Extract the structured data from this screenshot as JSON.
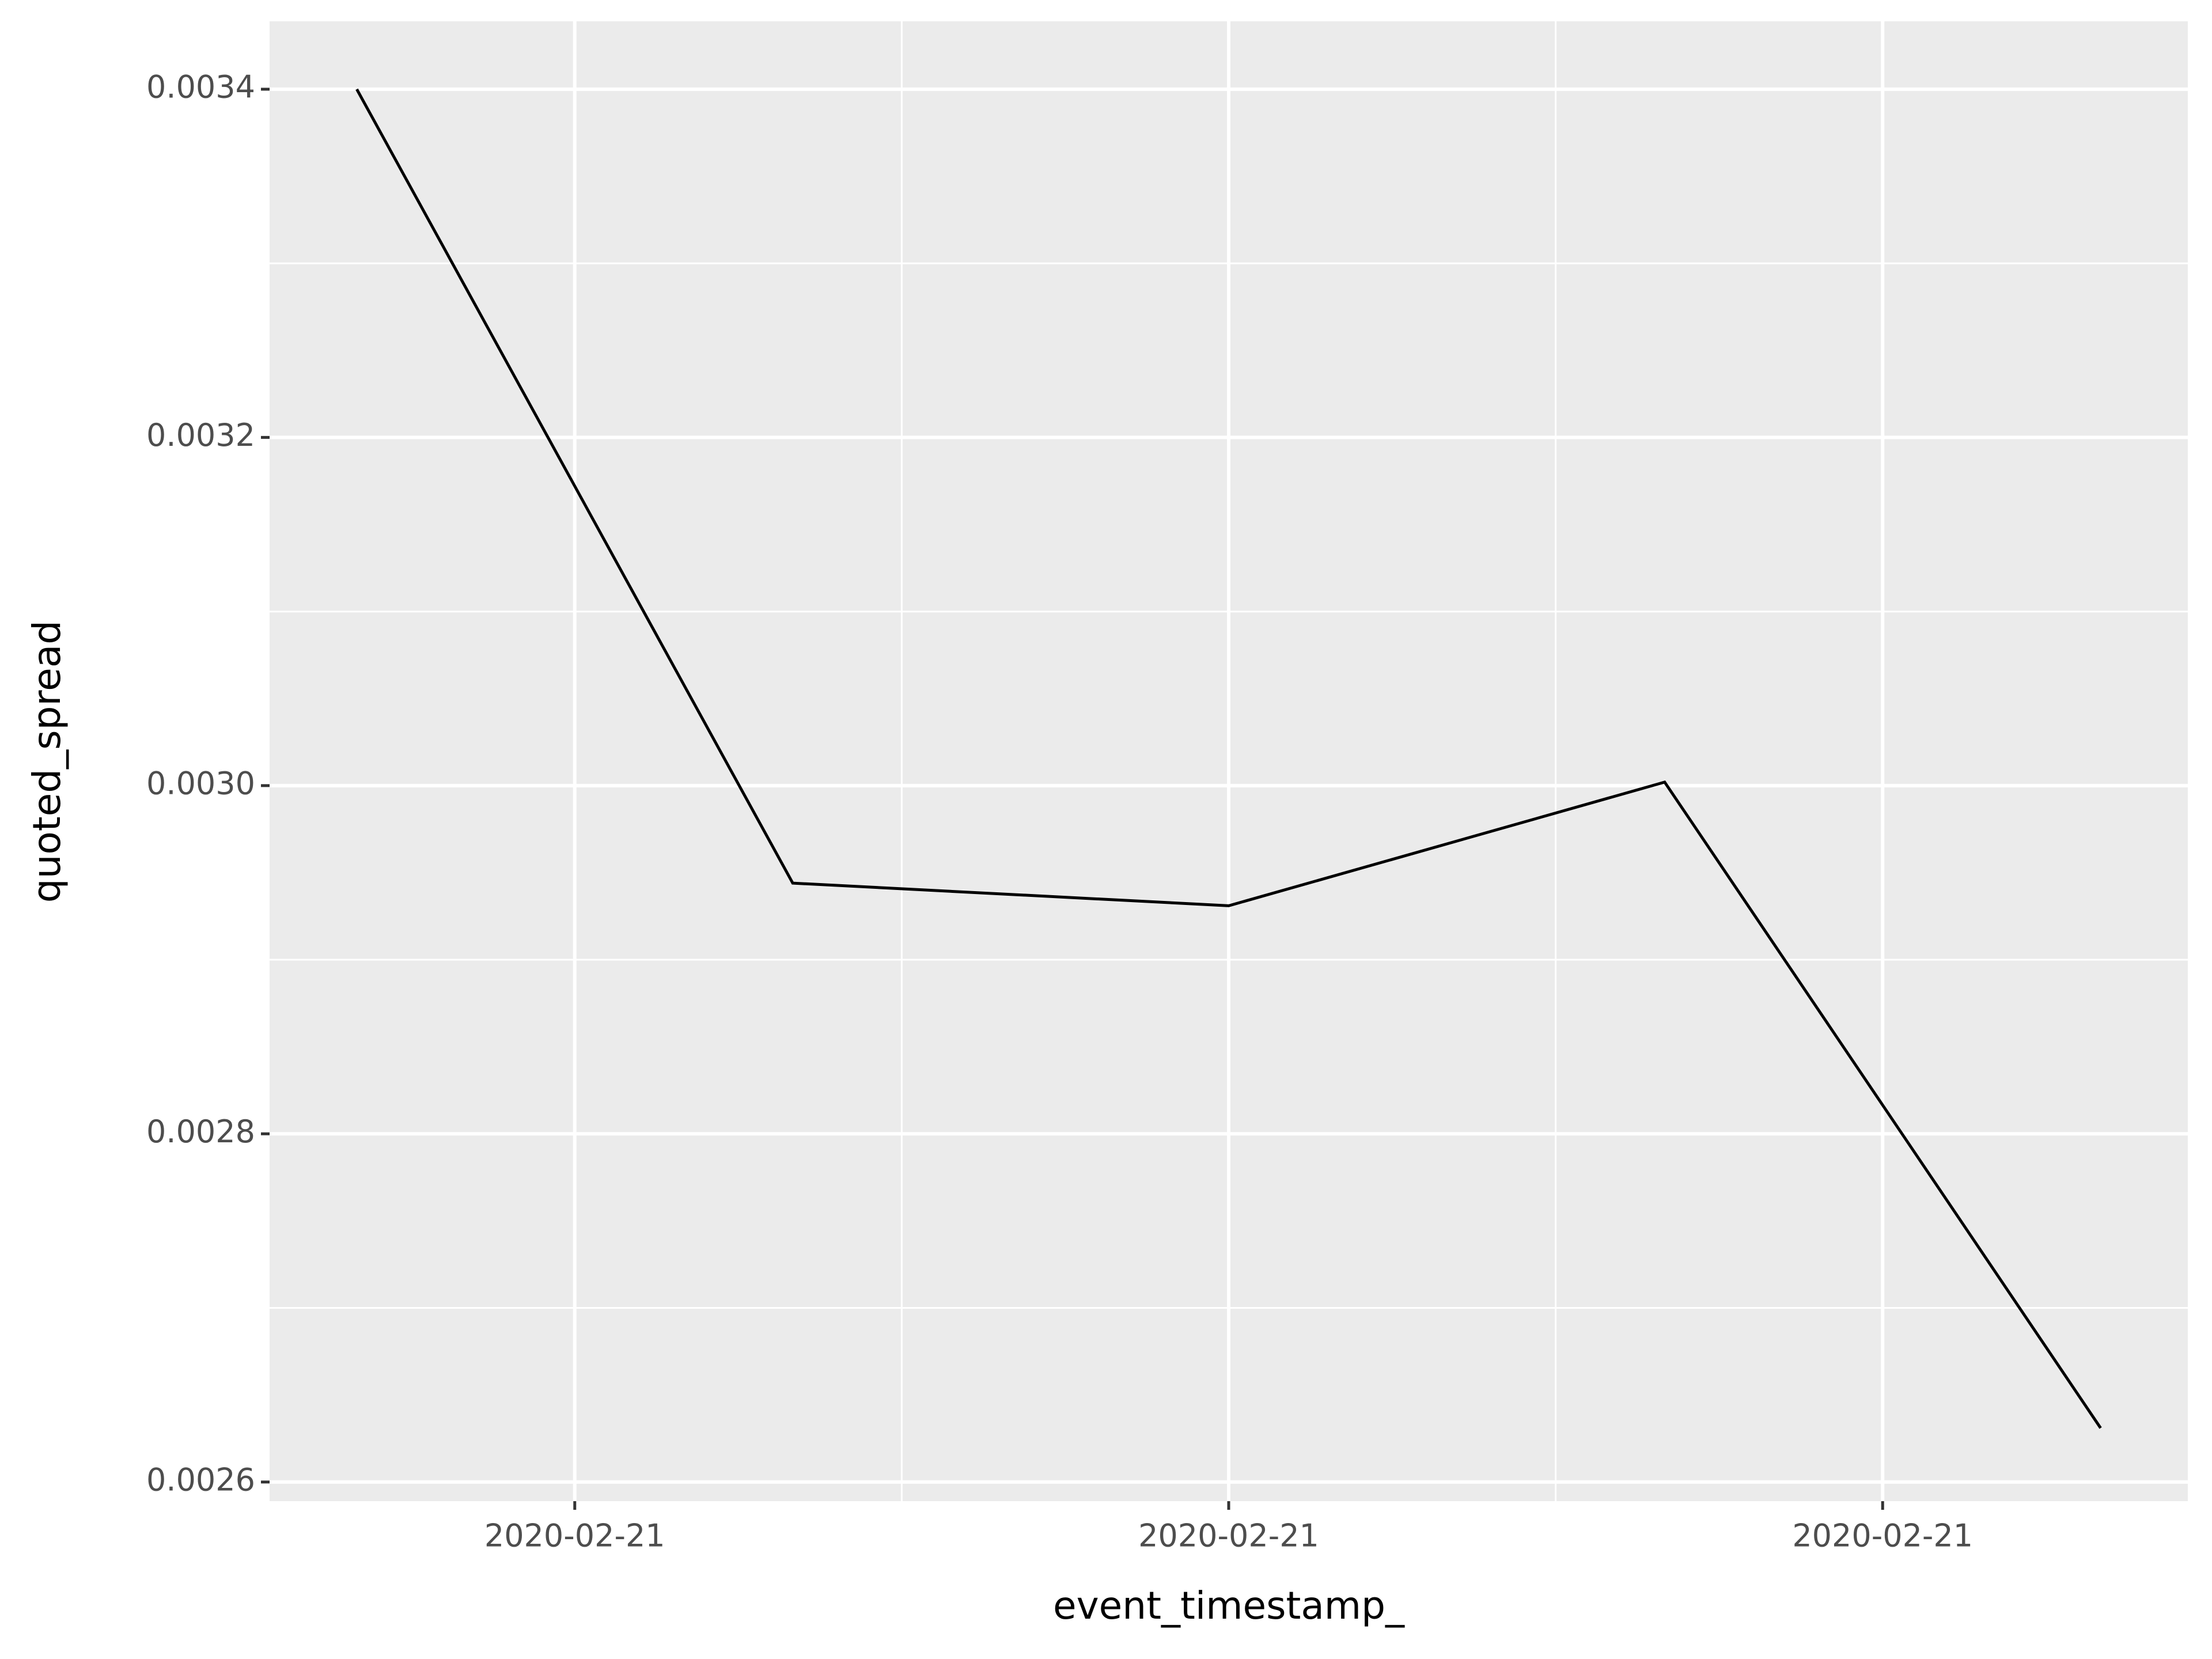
{
  "chart_data": {
    "type": "line",
    "x_label": "event_timestamp_",
    "y_label": "quoted_spread",
    "x": [
      0,
      2,
      4,
      6,
      8
    ],
    "series": [
      {
        "name": "quoted_spread",
        "color": "#000000",
        "values": [
          0.0034,
          0.002944,
          0.002931,
          0.003002,
          0.002631
        ]
      }
    ],
    "xlim": [
      -0.4,
      8.4
    ],
    "xticks": [
      {
        "value": 1,
        "label": "2020-02-21"
      },
      {
        "value": 4,
        "label": "2020-02-21"
      },
      {
        "value": 7,
        "label": "2020-02-21"
      }
    ],
    "ylim": [
      0.002589,
      0.003439
    ],
    "yticks": [
      0.0026,
      0.0028,
      {
        "value": 0.003,
        "label": "0.0030"
      },
      0.0032,
      0.0034
    ],
    "grid": true
  }
}
